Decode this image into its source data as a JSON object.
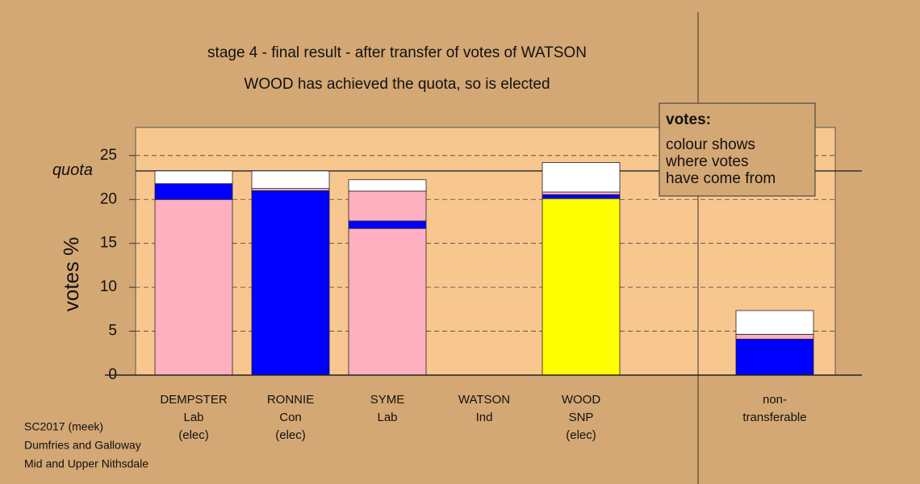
{
  "chart_data": {
    "type": "stacked-bar",
    "title": "stage 4 - final result - after transfer of votes of WATSON",
    "subtitle": "WOOD has achieved the quota, so is elected",
    "y_label": "votes %",
    "categories": [
      [
        "DEMPSTER",
        "Lab",
        "(elec)"
      ],
      [
        "RONNIE",
        "Con",
        "(elec)"
      ],
      [
        "SYME",
        "Lab"
      ],
      [
        "WATSON",
        "Ind"
      ],
      [
        "WOOD",
        "SNP",
        "(elec)"
      ],
      null,
      [
        "non-",
        "transferable"
      ]
    ],
    "stacks": [
      [
        {
          "color": "#ffb0c0",
          "value": 20
        },
        {
          "color": "#0000ff",
          "value": 1.8
        },
        {
          "color": "#ffffff",
          "value": 1.45
        }
      ],
      [
        {
          "color": "#0000ff",
          "value": 21
        },
        {
          "color": "#ffb0c0",
          "value": 0.25
        },
        {
          "color": "#ffffff",
          "value": 2.0
        }
      ],
      [
        {
          "color": "#ffb0c0",
          "value": 16.7
        },
        {
          "color": "#0000ff",
          "value": 0.85
        },
        {
          "color": "#ffb0c0",
          "value": 3.4
        },
        {
          "color": "#ffffff",
          "value": 1.3
        }
      ],
      [],
      [
        {
          "color": "#ffff00",
          "value": 20.1
        },
        {
          "color": "#0000ff",
          "value": 0.45
        },
        {
          "color": "#ffb0c0",
          "value": 0.3
        },
        {
          "color": "#ffffff",
          "value": 3.35
        }
      ],
      [],
      [
        {
          "color": "#0000ff",
          "value": 4.1
        },
        {
          "color": "#ffb0c0",
          "value": 0.55
        },
        {
          "color": "#ffffff",
          "value": 2.7
        }
      ]
    ],
    "quota": {
      "label": "quota",
      "value": 23.25
    },
    "ylim": [
      0,
      28.2
    ],
    "yticks": [
      0,
      5,
      10,
      15,
      20,
      25
    ],
    "grid": true,
    "note": {
      "title": "votes:",
      "lines": [
        "colour shows",
        "where votes",
        "have come from"
      ]
    },
    "footer": [
      "SC2017 (meek)",
      "Dumfries and Galloway",
      "Mid and Upper Nithsdale"
    ]
  }
}
